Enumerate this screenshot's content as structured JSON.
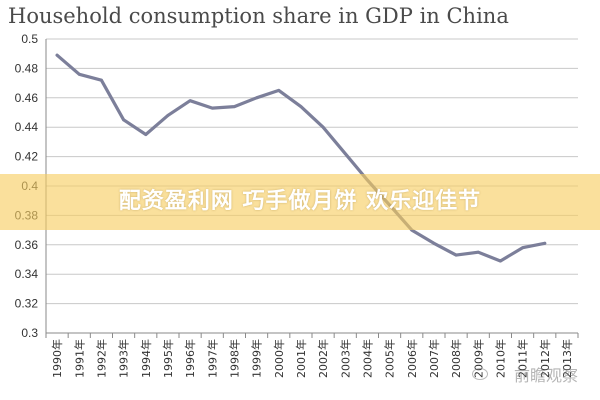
{
  "chart_data": {
    "type": "line",
    "title": "Household consumption share in GDP in China",
    "xlabel": "",
    "ylabel": "",
    "x": [
      "1990年",
      "1991年",
      "1992年",
      "1993年",
      "1994年",
      "1995年",
      "1996年",
      "1997年",
      "1998年",
      "1999年",
      "2000年",
      "2001年",
      "2002年",
      "2003年",
      "2004年",
      "2005年",
      "2006年",
      "2007年",
      "2008年",
      "2009年",
      "2010年",
      "2011年",
      "2012年",
      "2013年"
    ],
    "series": [
      {
        "values": [
          0.489,
          0.476,
          0.472,
          0.445,
          0.435,
          0.448,
          0.458,
          0.453,
          0.454,
          0.46,
          0.465,
          0.454,
          0.44,
          0.422,
          0.404,
          0.387,
          0.37,
          0.361,
          0.353,
          0.355,
          0.349,
          0.358,
          0.361,
          null
        ]
      }
    ],
    "yticks": [
      "0.5",
      "0.48",
      "0.46",
      "0.44",
      "0.42",
      "0.4",
      "0.38",
      "0.36",
      "0.34",
      "0.32",
      "0.3"
    ],
    "ylim": [
      0.3,
      0.5
    ],
    "grid": "horizontal",
    "line_color": "#7c7f9a"
  },
  "overlay": {
    "text": "配资盈利网 巧手做月饼 欢乐迎佳节"
  },
  "watermark": {
    "text": "前瞻观察"
  }
}
